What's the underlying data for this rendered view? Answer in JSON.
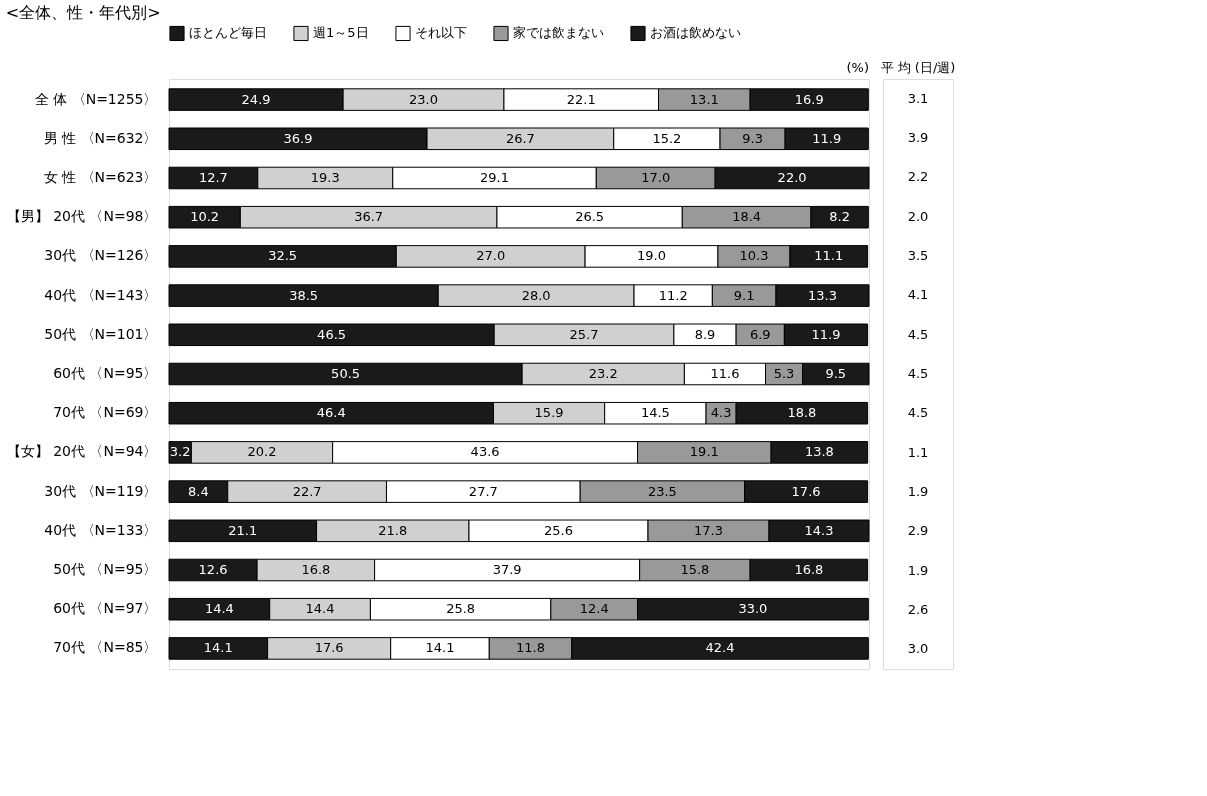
{
  "chart_data": {
    "type": "bar",
    "orientation": "horizontal",
    "stacked": true,
    "tick_labels": "y",
    "legend": "top",
    "title": "<全体、性・年代別>",
    "categories": [
      "全 体 〈N=1255〉",
      "男 性 〈N=632〉",
      "女 性 〈N=623〉",
      "【男】 20代 〈N=98〉",
      "30代 〈N=126〉",
      "40代 〈N=143〉",
      "50代 〈N=101〉",
      "60代 〈N=95〉",
      "70代 〈N=69〉",
      "【女】 20代 〈N=94〉",
      "30代 〈N=119〉",
      "40代 〈N=133〉",
      "50代 〈N=95〉",
      "60代 〈N=97〉",
      "70代 〈N=85〉"
    ],
    "series": [
      {
        "name": "ほとんど毎日",
        "color": "#1a1a1a",
        "values": [
          24.9,
          36.9,
          12.7,
          10.2,
          32.5,
          38.5,
          46.5,
          50.5,
          46.4,
          3.2,
          8.4,
          21.1,
          12.6,
          14.4,
          14.1
        ],
        "value_labels": [
          "24.9",
          "36.9",
          "12.7",
          "10.2",
          "32.5",
          "38.5",
          "46.5",
          "50.5",
          "46.4",
          "3.2",
          "8.4",
          "21.1",
          "12.6",
          "14.4",
          "14.1"
        ]
      },
      {
        "name": "週1～5日",
        "color": "#d0d0d0",
        "values": [
          23.0,
          26.7,
          19.3,
          36.7,
          27.0,
          28.0,
          25.7,
          23.2,
          15.9,
          20.2,
          22.7,
          21.8,
          16.8,
          14.4,
          17.6
        ],
        "value_labels": [
          "23.0",
          "26.7",
          "19.3",
          "36.7",
          "27.0",
          "28.0",
          "25.7",
          "23.2",
          "15.9",
          "20.2",
          "22.7",
          "21.8",
          "16.8",
          "14.4",
          "17.6"
        ]
      },
      {
        "name": "それ以下",
        "color": "#ffffff",
        "values": [
          22.1,
          15.2,
          29.1,
          26.5,
          19.0,
          11.2,
          8.9,
          11.6,
          14.5,
          43.6,
          27.7,
          25.6,
          37.9,
          25.8,
          14.1
        ],
        "value_labels": [
          "22.1",
          "15.2",
          "29.1",
          "26.5",
          "19.0",
          "11.2",
          "8.9",
          "11.6",
          "14.5",
          "43.6",
          "27.7",
          "25.6",
          "37.9",
          "25.8",
          "14.1"
        ]
      },
      {
        "name": "家では飲まない",
        "color": "#999999",
        "values": [
          13.1,
          9.3,
          17.0,
          18.4,
          10.3,
          9.1,
          6.9,
          5.3,
          4.3,
          19.1,
          23.5,
          17.3,
          15.8,
          12.4,
          11.8
        ],
        "value_labels": [
          "13.1",
          "9.3",
          "17.0",
          "18.4",
          "10.3",
          "9.1",
          "6.9",
          "5.3",
          "4.3",
          "19.1",
          "23.5",
          "17.3",
          "15.8",
          "12.4",
          "11.8"
        ]
      },
      {
        "name": "お酒は飲めない",
        "color": "#1a1a1a",
        "values": [
          16.9,
          11.9,
          22.0,
          8.2,
          11.1,
          13.3,
          11.9,
          9.5,
          18.8,
          13.8,
          17.6,
          14.3,
          16.8,
          33.0,
          42.4
        ],
        "value_labels": [
          "16.9",
          "11.9",
          "22.0",
          "8.2",
          "11.1",
          "13.3",
          "11.9",
          "9.5",
          "18.8",
          "13.8",
          "17.6",
          "14.3",
          "16.8",
          "33.0",
          "42.4"
        ]
      }
    ],
    "annotations": [
      "(%)",
      "平 均 (日/週)",
      "3.1",
      "3.9",
      "2.2",
      "2.0",
      "3.5",
      "4.1",
      "4.5",
      "4.5",
      "4.5",
      "1.1",
      "1.9",
      "2.9",
      "1.9",
      "2.6",
      "3.0"
    ]
  }
}
